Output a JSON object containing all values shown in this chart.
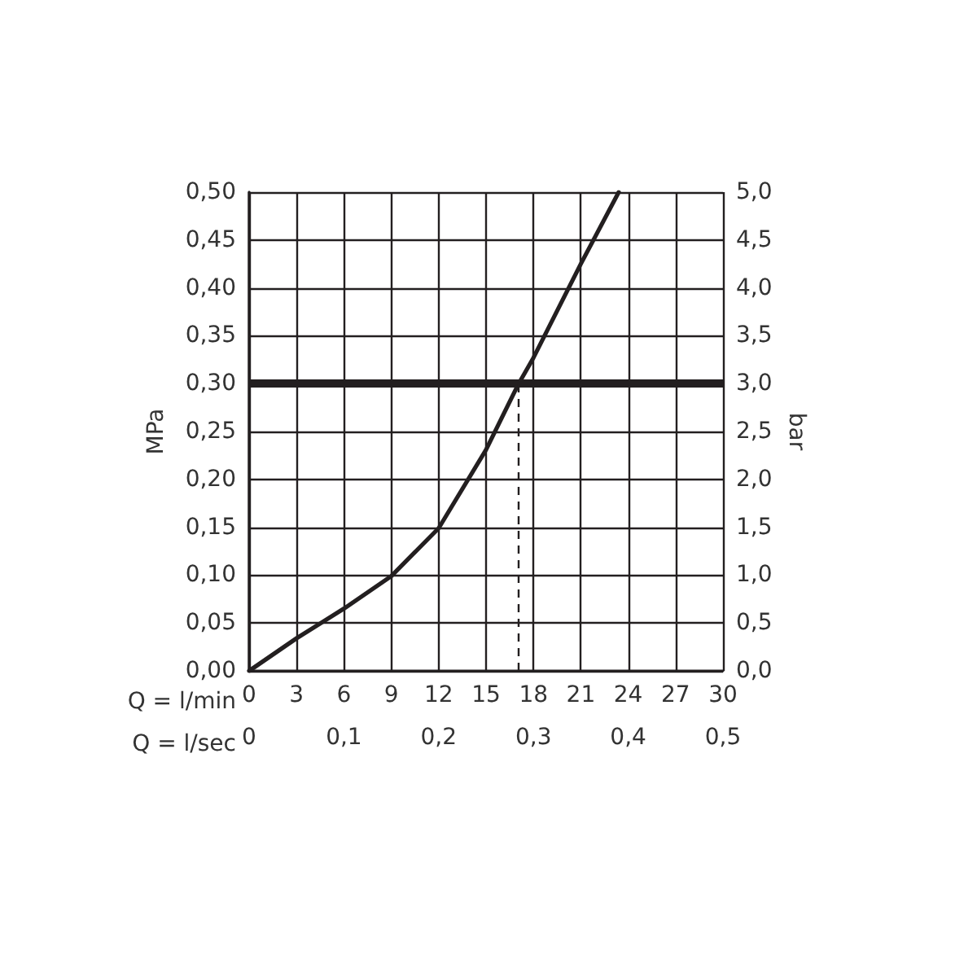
{
  "chart_data": {
    "type": "line",
    "xlabel": "Q = l/min",
    "x2label": "Q = l/sec",
    "ylabel": "MPa",
    "y2label": "bar",
    "x": [
      0,
      3,
      6,
      9,
      10.5,
      12,
      15,
      17,
      18,
      21,
      23.4
    ],
    "series": [
      {
        "color": "#231f20",
        "values": [
          0,
          0.034,
          0.065,
          0.099,
          0.124,
          0.149,
          0.231,
          0.298,
          0.327,
          0.425,
          0.5
        ]
      }
    ],
    "xlim": [
      0,
      30
    ],
    "xticks": [
      0,
      3,
      6,
      9,
      12,
      15,
      18,
      21,
      24,
      27,
      30
    ],
    "x2lim": [
      0,
      0.5
    ],
    "x2ticks": [
      0,
      {
        "value": 0.1,
        "label": "0,1"
      },
      {
        "value": 0.2,
        "label": "0,2"
      },
      {
        "value": 0.3,
        "label": "0,3"
      },
      {
        "value": 0.4,
        "label": "0,4"
      },
      {
        "value": 0.5,
        "label": "0,5"
      }
    ],
    "ylim": [
      0,
      0.5
    ],
    "yticks": [
      {
        "value": 0,
        "label": "0,00"
      },
      {
        "value": 0.05,
        "label": "0,05"
      },
      {
        "value": 0.1,
        "label": "0,10"
      },
      {
        "value": 0.15,
        "label": "0,15"
      },
      {
        "value": 0.2,
        "label": "0,20"
      },
      {
        "value": 0.25,
        "label": "0,25"
      },
      {
        "value": 0.3,
        "label": "0,30"
      },
      {
        "value": 0.35,
        "label": "0,35"
      },
      {
        "value": 0.4,
        "label": "0,40"
      },
      {
        "value": 0.45,
        "label": "0,45"
      },
      {
        "value": 0.5,
        "label": "0,50"
      }
    ],
    "y2lim": [
      0,
      5
    ],
    "y2ticks": [
      {
        "value": 0,
        "label": "0,0"
      },
      {
        "value": 0.5,
        "label": "0,5"
      },
      {
        "value": 1,
        "label": "1,0"
      },
      {
        "value": 1.5,
        "label": "1,5"
      },
      {
        "value": 2,
        "label": "2,0"
      },
      {
        "value": 2.5,
        "label": "2,5"
      },
      {
        "value": 3,
        "label": "3,0"
      },
      {
        "value": 3.5,
        "label": "3,5"
      },
      {
        "value": 4,
        "label": "4,0"
      },
      {
        "value": 4.5,
        "label": "4,5"
      },
      {
        "value": 5,
        "label": "5,0"
      }
    ],
    "ref_lines": [
      {
        "axis": "y",
        "value": 0.3,
        "color": "#231f20",
        "line_style": "solid"
      },
      {
        "axis": "x",
        "value": 17,
        "color": "#231f20",
        "line_style": "dashed"
      }
    ],
    "grid": true,
    "marker": "none",
    "line_style": "solid"
  }
}
